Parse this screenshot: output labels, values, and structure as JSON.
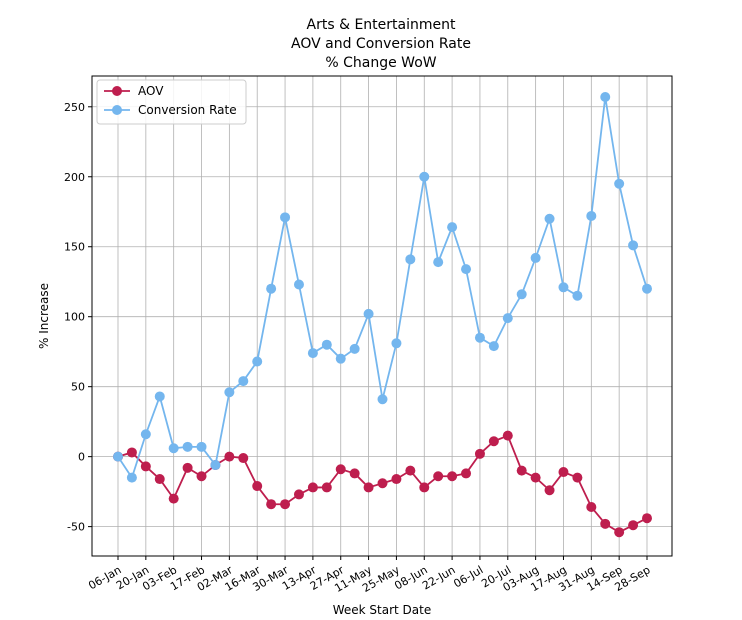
{
  "chart_data": {
    "type": "line",
    "title": [
      "Arts & Entertainment",
      "AOV and Conversion Rate",
      "% Change WoW"
    ],
    "xlabel": "Week Start Date",
    "ylabel": "% Increase",
    "ylim": [
      -71,
      272
    ],
    "yticks": [
      -50,
      0,
      50,
      100,
      150,
      200,
      250
    ],
    "grid": true,
    "legend_position": "top-left",
    "tick_labels": [
      "06-Jan",
      "20-Jan",
      "03-Feb",
      "17-Feb",
      "02-Mar",
      "16-Mar",
      "30-Mar",
      "13-Apr",
      "27-Apr",
      "11-May",
      "25-May",
      "08-Jun",
      "22-Jun",
      "06-Jul",
      "20-Jul",
      "03-Aug",
      "17-Aug",
      "31-Aug",
      "14-Sep",
      "28-Sep"
    ],
    "x": [
      "06-Jan",
      "13-Jan",
      "20-Jan",
      "27-Jan",
      "03-Feb",
      "10-Feb",
      "17-Feb",
      "24-Feb",
      "02-Mar",
      "09-Mar",
      "16-Mar",
      "23-Mar",
      "30-Mar",
      "06-Apr",
      "13-Apr",
      "20-Apr",
      "27-Apr",
      "04-May",
      "11-May",
      "18-May",
      "25-May",
      "01-Jun",
      "08-Jun",
      "15-Jun",
      "22-Jun",
      "29-Jun",
      "06-Jul",
      "13-Jul",
      "20-Jul",
      "27-Jul",
      "03-Aug",
      "10-Aug",
      "17-Aug",
      "24-Aug",
      "31-Aug",
      "07-Sep",
      "14-Sep",
      "21-Sep",
      "28-Sep"
    ],
    "series": [
      {
        "name": "AOV",
        "color": "#be1e4e",
        "values": [
          0,
          3,
          -7,
          -16,
          -30,
          -8,
          -14,
          -6,
          0,
          -1,
          -21,
          -34,
          -34,
          -27,
          -22,
          -22,
          -9,
          -12,
          -22,
          -19,
          -16,
          -10,
          -22,
          -14,
          -14,
          -12,
          2,
          11,
          15,
          -10,
          -15,
          -24,
          -11,
          -15,
          -36,
          -48,
          -54,
          -49,
          -44
        ]
      },
      {
        "name": "Conversion Rate",
        "color": "#74b6ee",
        "values": [
          0,
          -15,
          16,
          43,
          6,
          7,
          7,
          -6,
          46,
          54,
          68,
          120,
          171,
          123,
          74,
          80,
          70,
          77,
          102,
          41,
          81,
          141,
          200,
          139,
          164,
          134,
          85,
          79,
          99,
          116,
          142,
          170,
          121,
          115,
          172,
          257,
          195,
          151,
          120
        ]
      }
    ]
  }
}
